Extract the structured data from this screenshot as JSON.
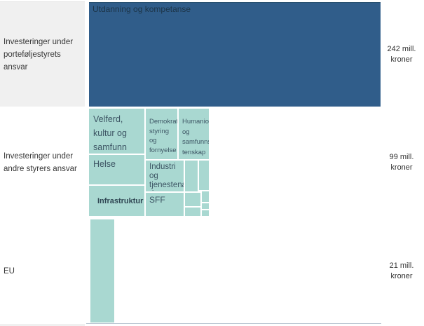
{
  "colors": {
    "primary_blue": "#305d8a",
    "teal": "#a9d8d1",
    "row_label_bg": "#f0f0f0"
  },
  "rows": [
    {
      "label": "Investeringer under\nporteføljestyrets\nansvar",
      "value": "242 mill.\nkroner"
    },
    {
      "label": "Investeringer under\nandre styrers ansvar",
      "value": "99 mill.\nkroner"
    },
    {
      "label": "EU",
      "value": "21 mill.\nkroner"
    }
  ],
  "cells": [
    {
      "label": "Utdanning og kompetanse"
    },
    {
      "label": "Velferd,\nkultur og\nsamfunn"
    },
    {
      "label": "Helse"
    },
    {
      "label": "Infrastruktur"
    },
    {
      "label": "Demokrati,\nstyring og\nfornyelse"
    },
    {
      "label": "Humaniora\nog\nsamfunnsvi\ntenskap"
    },
    {
      "label": "Industri og\ntjenestenæ\nringer"
    },
    {
      "label": "SFF"
    }
  ],
  "chart_data": {
    "type": "treemap",
    "title": "",
    "legend_position": "none",
    "unit": "mill. kroner",
    "groups": [
      {
        "name": "Investeringer under porteføljestyrets ansvar",
        "total_value": 242,
        "total_label": "242 mill. kroner",
        "color": "#305d8a",
        "cells": [
          "Utdanning og kompetanse"
        ]
      },
      {
        "name": "Investeringer under andre styrers ansvar",
        "total_value": 99,
        "total_label": "99 mill. kroner",
        "color": "#a9d8d1",
        "cells": [
          "Velferd, kultur og samfunn",
          "Helse",
          "Infrastruktur",
          "Demokrati, styring og fornyelse",
          "Humaniora og samfunnsvitenskap",
          "Industri og tjenestenæringer",
          "SFF"
        ],
        "unlabeled_small_cells": 7
      },
      {
        "name": "EU",
        "total_value": 21,
        "total_label": "21 mill. kroner",
        "color": "#a9d8d1",
        "cells": []
      }
    ]
  }
}
